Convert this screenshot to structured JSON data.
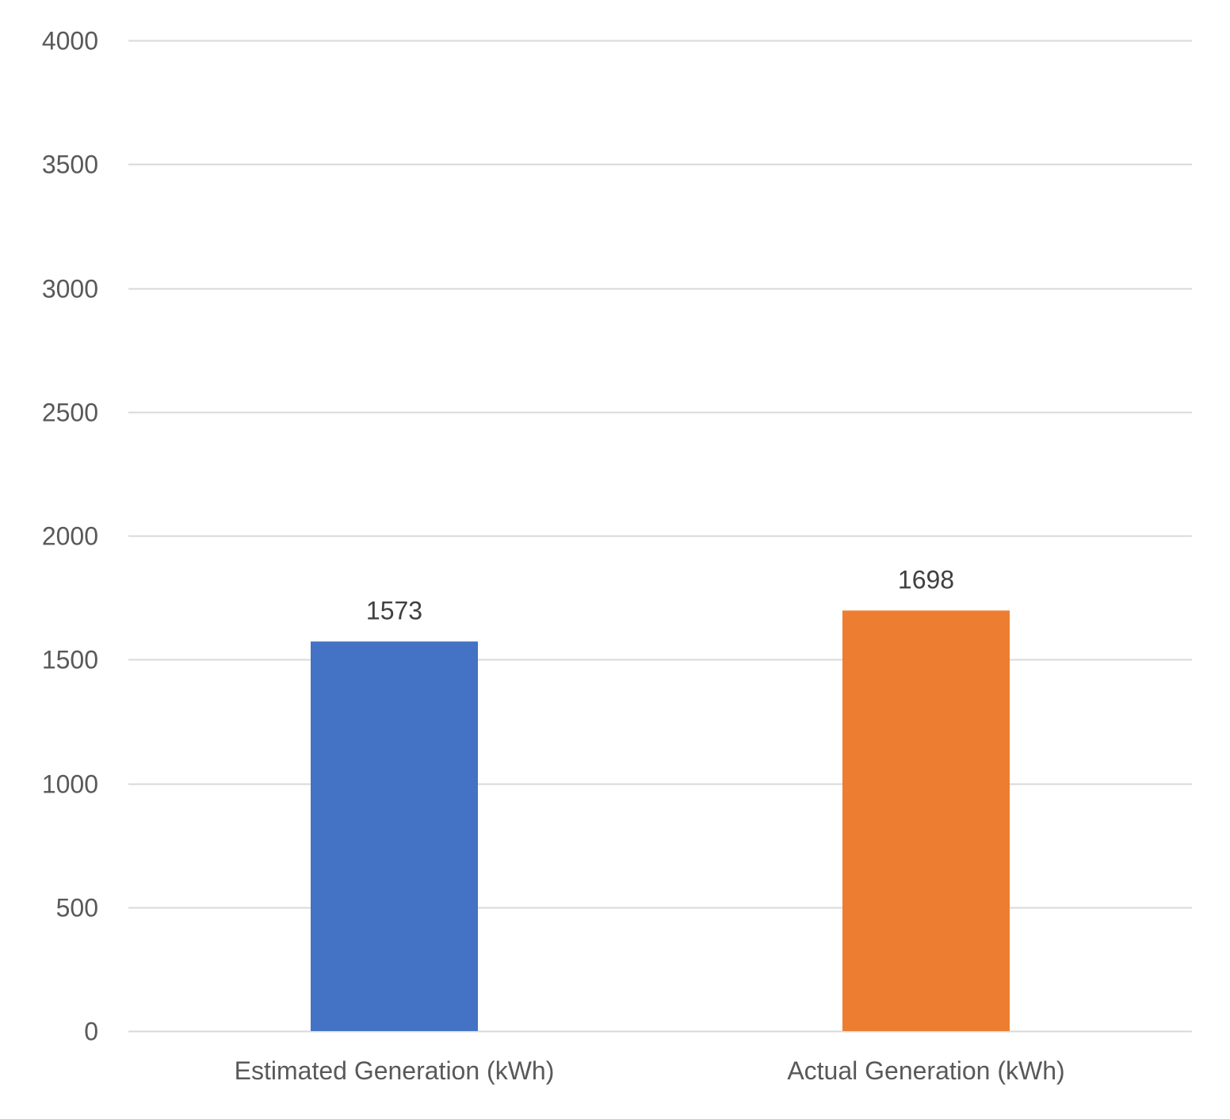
{
  "chart_data": {
    "type": "bar",
    "categories": [
      "Estimated Generation (kWh)",
      "Actual Generation (kWh)"
    ],
    "values": [
      1573,
      1698
    ],
    "data_labels": [
      "1573",
      "1698"
    ],
    "colors": [
      "#4472c4",
      "#ed7d31"
    ],
    "title": "",
    "xlabel": "",
    "ylabel": "",
    "ylim": [
      0,
      4000
    ],
    "yticks": [
      0,
      500,
      1000,
      1500,
      2000,
      2500,
      3000,
      3500,
      4000
    ],
    "ytick_labels": [
      "0",
      "500",
      "1000",
      "1500",
      "2000",
      "2500",
      "3000",
      "3500",
      "4000"
    ],
    "grid": true,
    "legend": "none"
  }
}
